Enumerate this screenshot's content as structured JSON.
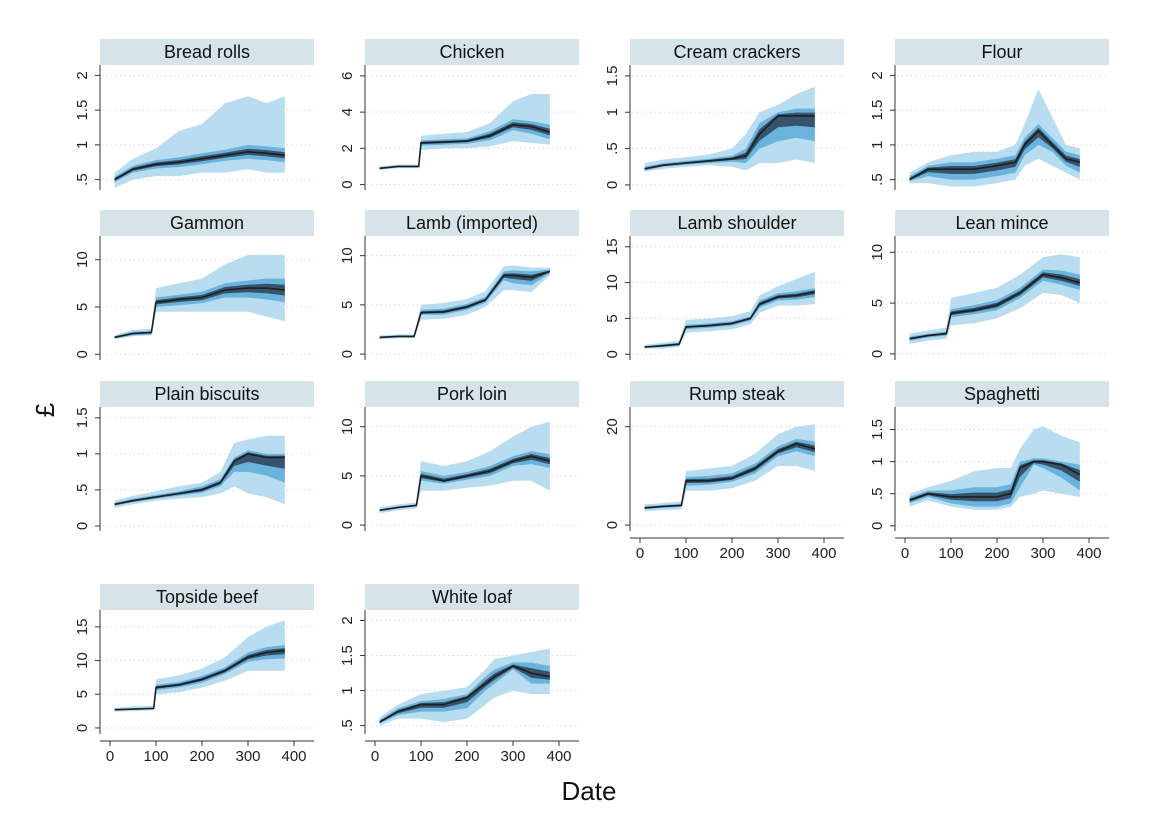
{
  "chart_data": {
    "type": "area",
    "layout": "small-multiples",
    "xlabel": "Date",
    "ylabel": "£",
    "x_ticks": [
      0,
      100,
      200,
      300,
      400
    ],
    "x_range": [
      0,
      400
    ],
    "grid": "horizontal dotted",
    "colors": {
      "outer_band": "#b8dcf0",
      "middle_band": "#6ab3dc",
      "inner_band": "#36536b",
      "median": "#1e1e1e",
      "panel_header": "#d6e4ea"
    },
    "panels": [
      {
        "name": "Bread rolls",
        "y_ticks": [
          0.5,
          1,
          1.5,
          2
        ],
        "y_tick_labels": [
          ".5",
          "1",
          "1.5",
          "2"
        ],
        "ylim": [
          0.35,
          2.15
        ],
        "x": [
          10,
          50,
          100,
          150,
          200,
          250,
          300,
          340,
          380
        ],
        "median": [
          0.5,
          0.65,
          0.72,
          0.75,
          0.8,
          0.85,
          0.9,
          0.88,
          0.85
        ],
        "p25": [
          0.46,
          0.6,
          0.66,
          0.68,
          0.72,
          0.77,
          0.8,
          0.78,
          0.75
        ],
        "p75": [
          0.54,
          0.7,
          0.78,
          0.82,
          0.88,
          0.93,
          1.0,
          0.98,
          0.95
        ],
        "min": [
          0.38,
          0.5,
          0.55,
          0.55,
          0.6,
          0.6,
          0.65,
          0.6,
          0.6
        ],
        "max": [
          0.6,
          0.8,
          0.95,
          1.2,
          1.3,
          1.6,
          1.7,
          1.6,
          1.7
        ]
      },
      {
        "name": "Chicken",
        "y_ticks": [
          0,
          2,
          4,
          6
        ],
        "y_tick_labels": [
          "0",
          "2",
          "4",
          "6"
        ],
        "ylim": [
          -0.3,
          6.6
        ],
        "x": [
          10,
          50,
          95,
          100,
          150,
          200,
          250,
          300,
          340,
          380
        ],
        "median": [
          0.9,
          1.0,
          1.0,
          2.3,
          2.35,
          2.4,
          2.7,
          3.3,
          3.2,
          2.9
        ],
        "p25": [
          0.85,
          0.95,
          0.95,
          2.15,
          2.2,
          2.25,
          2.45,
          3.0,
          2.8,
          2.5
        ],
        "p75": [
          0.95,
          1.05,
          1.05,
          2.45,
          2.5,
          2.55,
          2.95,
          3.6,
          3.5,
          3.3
        ],
        "min": [
          0.8,
          0.9,
          0.9,
          1.9,
          2.0,
          2.0,
          2.1,
          2.4,
          2.3,
          2.2
        ],
        "max": [
          1.0,
          1.1,
          1.1,
          2.7,
          2.8,
          2.9,
          3.4,
          4.6,
          5.0,
          5.0
        ]
      },
      {
        "name": "Cream crackers",
        "y_ticks": [
          0,
          0.5,
          1,
          1.5
        ],
        "y_tick_labels": [
          "0",
          ".5",
          "1",
          "1.5"
        ],
        "ylim": [
          -0.07,
          1.65
        ],
        "x": [
          10,
          50,
          100,
          150,
          200,
          230,
          260,
          300,
          340,
          380
        ],
        "median": [
          0.22,
          0.27,
          0.3,
          0.33,
          0.36,
          0.4,
          0.7,
          0.95,
          0.95,
          0.95
        ],
        "p25": [
          0.2,
          0.25,
          0.28,
          0.3,
          0.32,
          0.3,
          0.5,
          0.6,
          0.65,
          0.6
        ],
        "p75": [
          0.25,
          0.3,
          0.33,
          0.36,
          0.4,
          0.5,
          0.85,
          1.0,
          1.05,
          1.05
        ],
        "min": [
          0.18,
          0.22,
          0.25,
          0.27,
          0.25,
          0.2,
          0.3,
          0.3,
          0.35,
          0.3
        ],
        "max": [
          0.3,
          0.35,
          0.38,
          0.42,
          0.5,
          0.7,
          1.0,
          1.1,
          1.25,
          1.35
        ]
      },
      {
        "name": "Flour",
        "y_ticks": [
          0.5,
          1,
          1.5,
          2
        ],
        "y_tick_labels": [
          ".5",
          "1",
          "1.5",
          "2"
        ],
        "ylim": [
          0.35,
          2.15
        ],
        "x": [
          10,
          50,
          100,
          150,
          200,
          240,
          260,
          290,
          320,
          350,
          380
        ],
        "median": [
          0.5,
          0.65,
          0.65,
          0.65,
          0.7,
          0.75,
          1.0,
          1.2,
          1.0,
          0.8,
          0.75
        ],
        "p25": [
          0.48,
          0.55,
          0.5,
          0.5,
          0.55,
          0.6,
          0.85,
          1.0,
          0.9,
          0.7,
          0.6
        ],
        "p75": [
          0.55,
          0.7,
          0.75,
          0.75,
          0.8,
          0.85,
          1.1,
          1.3,
          1.1,
          0.9,
          0.85
        ],
        "min": [
          0.45,
          0.45,
          0.4,
          0.4,
          0.45,
          0.5,
          0.7,
          0.8,
          0.7,
          0.6,
          0.5
        ],
        "max": [
          0.6,
          0.75,
          0.85,
          0.9,
          0.9,
          1.0,
          1.3,
          1.8,
          1.4,
          1.0,
          0.95
        ]
      },
      {
        "name": "Gammon",
        "y_ticks": [
          0,
          5,
          10
        ],
        "y_tick_labels": [
          "0",
          "5",
          "10"
        ],
        "ylim": [
          -0.6,
          12.5
        ],
        "x": [
          10,
          50,
          90,
          100,
          150,
          200,
          250,
          300,
          340,
          380
        ],
        "median": [
          1.8,
          2.2,
          2.3,
          5.5,
          5.8,
          6.0,
          6.8,
          7.0,
          7.0,
          6.8
        ],
        "p25": [
          1.7,
          2.0,
          2.1,
          5.0,
          5.2,
          5.4,
          6.0,
          6.0,
          5.8,
          5.5
        ],
        "p75": [
          1.9,
          2.4,
          2.5,
          6.0,
          6.3,
          6.6,
          7.5,
          7.8,
          8.0,
          8.0
        ],
        "min": [
          1.6,
          1.9,
          2.0,
          4.5,
          4.5,
          4.5,
          4.5,
          4.5,
          4.0,
          3.5
        ],
        "max": [
          2.0,
          2.6,
          2.7,
          7.0,
          7.5,
          8.0,
          9.5,
          10.5,
          10.5,
          10.5
        ]
      },
      {
        "name": "Lamb (imported)",
        "y_ticks": [
          0,
          5,
          10
        ],
        "y_tick_labels": [
          "0",
          "5",
          "10"
        ],
        "ylim": [
          -0.6,
          12.0
        ],
        "x": [
          10,
          50,
          85,
          100,
          150,
          200,
          240,
          280,
          300,
          340,
          380
        ],
        "median": [
          1.7,
          1.8,
          1.8,
          4.2,
          4.3,
          4.8,
          5.5,
          8.0,
          8.0,
          7.8,
          8.4
        ],
        "p25": [
          1.6,
          1.7,
          1.7,
          4.0,
          4.0,
          4.5,
          5.2,
          7.5,
          7.2,
          7.0,
          8.2
        ],
        "p75": [
          1.8,
          1.9,
          1.9,
          4.5,
          4.6,
          5.1,
          5.8,
          8.4,
          8.5,
          8.4,
          8.6
        ],
        "min": [
          1.5,
          1.6,
          1.6,
          3.5,
          3.6,
          4.0,
          4.8,
          6.5,
          6.5,
          6.3,
          8.0
        ],
        "max": [
          1.9,
          2.0,
          2.0,
          5.0,
          5.2,
          5.6,
          6.4,
          8.9,
          9.0,
          8.8,
          8.8
        ]
      },
      {
        "name": "Lamb shoulder",
        "y_ticks": [
          0,
          5,
          10,
          15
        ],
        "y_tick_labels": [
          "0",
          "5",
          "10",
          "15"
        ],
        "ylim": [
          -0.8,
          16.5
        ],
        "x": [
          10,
          50,
          85,
          100,
          150,
          200,
          240,
          260,
          300,
          340,
          380
        ],
        "median": [
          1.0,
          1.2,
          1.4,
          3.8,
          4.0,
          4.3,
          5.0,
          7.0,
          8.0,
          8.2,
          8.7
        ],
        "p25": [
          0.9,
          1.0,
          1.2,
          3.5,
          3.7,
          4.0,
          4.7,
          6.5,
          7.5,
          7.6,
          8.0
        ],
        "p75": [
          1.1,
          1.4,
          1.6,
          4.1,
          4.3,
          4.6,
          5.3,
          7.5,
          8.5,
          8.8,
          9.2
        ],
        "min": [
          0.8,
          0.8,
          1.0,
          3.0,
          3.2,
          3.5,
          4.2,
          5.8,
          6.8,
          6.8,
          7.0
        ],
        "max": [
          1.3,
          1.6,
          1.9,
          4.8,
          5.0,
          5.3,
          6.0,
          8.2,
          9.5,
          10.5,
          11.5
        ]
      },
      {
        "name": "Lean mince",
        "y_ticks": [
          0,
          5,
          10
        ],
        "y_tick_labels": [
          "0",
          "5",
          "10"
        ],
        "ylim": [
          -0.6,
          11.6
        ],
        "x": [
          10,
          50,
          90,
          100,
          150,
          200,
          250,
          300,
          340,
          380
        ],
        "median": [
          1.5,
          1.8,
          2.0,
          4.0,
          4.3,
          4.8,
          6.0,
          7.8,
          7.5,
          7.0
        ],
        "p25": [
          1.3,
          1.6,
          1.8,
          3.6,
          3.9,
          4.3,
          5.5,
          7.2,
          6.8,
          6.3
        ],
        "p75": [
          1.7,
          2.0,
          2.2,
          4.4,
          4.8,
          5.3,
          6.5,
          8.3,
          8.2,
          7.8
        ],
        "min": [
          1.0,
          1.3,
          1.5,
          2.8,
          3.0,
          3.5,
          4.5,
          6.0,
          5.8,
          5.0
        ],
        "max": [
          2.0,
          2.3,
          2.6,
          5.5,
          6.0,
          6.5,
          7.8,
          9.5,
          9.8,
          9.5
        ]
      },
      {
        "name": "Plain biscuits",
        "y_ticks": [
          0,
          0.5,
          1,
          1.5
        ],
        "y_tick_labels": [
          "0",
          ".5",
          "1",
          "1.5"
        ],
        "ylim": [
          -0.07,
          1.65
        ],
        "x": [
          10,
          50,
          100,
          150,
          200,
          240,
          270,
          300,
          340,
          380
        ],
        "median": [
          0.3,
          0.35,
          0.4,
          0.45,
          0.5,
          0.6,
          0.9,
          1.0,
          0.95,
          0.95
        ],
        "p25": [
          0.28,
          0.33,
          0.38,
          0.42,
          0.46,
          0.55,
          0.75,
          0.75,
          0.7,
          0.6
        ],
        "p75": [
          0.32,
          0.38,
          0.43,
          0.48,
          0.55,
          0.65,
          0.95,
          1.05,
          1.0,
          1.0
        ],
        "min": [
          0.25,
          0.3,
          0.35,
          0.38,
          0.4,
          0.45,
          0.55,
          0.45,
          0.4,
          0.3
        ],
        "max": [
          0.35,
          0.42,
          0.48,
          0.55,
          0.6,
          0.75,
          1.15,
          1.2,
          1.25,
          1.25
        ]
      },
      {
        "name": "Pork loin",
        "y_ticks": [
          0,
          5,
          10
        ],
        "y_tick_labels": [
          "0",
          "5",
          "10"
        ],
        "ylim": [
          -0.6,
          12.0
        ],
        "x": [
          10,
          50,
          90,
          100,
          150,
          200,
          250,
          300,
          340,
          380
        ],
        "median": [
          1.5,
          1.8,
          2.0,
          5.0,
          4.5,
          5.0,
          5.5,
          6.5,
          7.0,
          6.5
        ],
        "p25": [
          1.4,
          1.7,
          1.9,
          4.5,
          4.2,
          4.6,
          5.0,
          6.0,
          6.2,
          5.8
        ],
        "p75": [
          1.6,
          1.9,
          2.1,
          5.5,
          5.0,
          5.4,
          6.0,
          7.0,
          7.5,
          7.2
        ],
        "min": [
          1.2,
          1.5,
          1.7,
          3.5,
          3.5,
          3.8,
          4.0,
          4.5,
          4.5,
          3.5
        ],
        "max": [
          1.8,
          2.1,
          2.3,
          6.5,
          6.0,
          6.5,
          7.5,
          9.0,
          10.0,
          10.5
        ]
      },
      {
        "name": "Rump steak",
        "y_ticks": [
          0,
          20
        ],
        "y_tick_labels": [
          "0",
          "20"
        ],
        "ylim": [
          -1.2,
          24.0
        ],
        "x": [
          10,
          50,
          90,
          100,
          150,
          200,
          250,
          300,
          340,
          380
        ],
        "median": [
          3.5,
          3.8,
          4.0,
          9.0,
          9.0,
          9.5,
          11.5,
          15.0,
          16.5,
          15.5
        ],
        "p25": [
          3.2,
          3.5,
          3.7,
          8.0,
          8.2,
          8.8,
          10.5,
          14.0,
          15.0,
          14.0
        ],
        "p75": [
          3.8,
          4.1,
          4.3,
          9.8,
          10.0,
          10.5,
          12.5,
          16.0,
          17.5,
          17.0
        ],
        "min": [
          2.8,
          3.0,
          3.2,
          7.0,
          7.0,
          7.5,
          9.0,
          12.0,
          12.0,
          11.0
        ],
        "max": [
          4.2,
          4.5,
          4.8,
          11.0,
          11.5,
          12.0,
          14.5,
          18.5,
          20.0,
          20.5
        ]
      },
      {
        "name": "Spaghetti",
        "y_ticks": [
          0,
          0.5,
          1,
          1.5
        ],
        "y_tick_labels": [
          "0",
          ".5",
          "1",
          "1.5"
        ],
        "ylim": [
          -0.08,
          1.85
        ],
        "x": [
          10,
          50,
          100,
          150,
          200,
          230,
          250,
          280,
          300,
          340,
          380
        ],
        "median": [
          0.4,
          0.5,
          0.45,
          0.45,
          0.45,
          0.5,
          0.9,
          1.0,
          1.0,
          0.95,
          0.8
        ],
        "p25": [
          0.35,
          0.45,
          0.35,
          0.3,
          0.3,
          0.35,
          0.6,
          0.95,
          0.9,
          0.75,
          0.55
        ],
        "p75": [
          0.45,
          0.55,
          0.55,
          0.6,
          0.6,
          0.65,
          1.0,
          1.05,
          1.05,
          1.0,
          0.95
        ],
        "min": [
          0.3,
          0.4,
          0.3,
          0.25,
          0.25,
          0.3,
          0.45,
          0.5,
          0.55,
          0.5,
          0.45
        ],
        "max": [
          0.5,
          0.6,
          0.7,
          0.85,
          0.9,
          0.9,
          1.2,
          1.5,
          1.55,
          1.4,
          1.3
        ]
      },
      {
        "name": "Topside beef",
        "y_ticks": [
          0,
          5,
          10,
          15
        ],
        "y_tick_labels": [
          "0",
          "5",
          "10",
          "15"
        ],
        "ylim": [
          -0.9,
          17.5
        ],
        "x": [
          10,
          50,
          95,
          100,
          150,
          200,
          250,
          300,
          340,
          380
        ],
        "median": [
          2.7,
          2.8,
          2.9,
          6.0,
          6.4,
          7.2,
          8.5,
          10.5,
          11.2,
          11.5
        ],
        "p25": [
          2.6,
          2.7,
          2.8,
          5.6,
          6.0,
          6.7,
          8.0,
          9.8,
          10.2,
          10.3
        ],
        "p75": [
          2.8,
          2.9,
          3.0,
          6.4,
          6.8,
          7.7,
          9.0,
          11.2,
          12.0,
          12.3
        ],
        "min": [
          2.4,
          2.5,
          2.6,
          5.0,
          5.3,
          6.0,
          7.0,
          8.5,
          8.5,
          8.5
        ],
        "max": [
          3.0,
          3.2,
          3.3,
          7.2,
          7.8,
          8.8,
          10.5,
          13.5,
          15.0,
          16.0
        ]
      },
      {
        "name": "White loaf",
        "y_ticks": [
          0.5,
          1,
          1.5,
          2
        ],
        "y_tick_labels": [
          ".5",
          "1",
          "1.5",
          "2"
        ],
        "ylim": [
          0.38,
          2.15
        ],
        "x": [
          10,
          50,
          100,
          150,
          200,
          240,
          260,
          300,
          340,
          380
        ],
        "median": [
          0.55,
          0.7,
          0.8,
          0.8,
          0.9,
          1.1,
          1.2,
          1.35,
          1.25,
          1.2
        ],
        "p25": [
          0.53,
          0.65,
          0.7,
          0.7,
          0.75,
          1.0,
          1.1,
          1.3,
          1.1,
          1.1
        ],
        "p75": [
          0.58,
          0.75,
          0.85,
          0.88,
          0.95,
          1.2,
          1.3,
          1.4,
          1.4,
          1.35
        ],
        "min": [
          0.5,
          0.6,
          0.6,
          0.55,
          0.6,
          0.8,
          0.9,
          1.0,
          0.95,
          0.95
        ],
        "max": [
          0.62,
          0.8,
          0.95,
          1.0,
          1.05,
          1.3,
          1.45,
          1.5,
          1.55,
          1.6
        ]
      }
    ]
  }
}
